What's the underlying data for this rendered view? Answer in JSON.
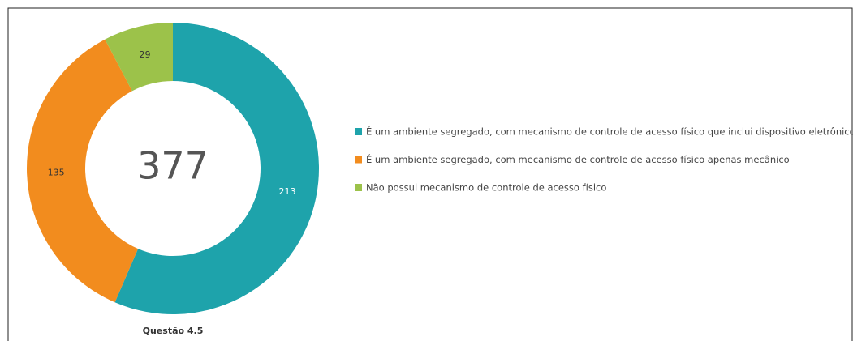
{
  "chart_data": {
    "type": "donut",
    "title": "Questão 4.5",
    "center_label": 377,
    "categories": [
      "É um ambiente segregado, com mecanismo de controle de acesso físico que inclui dispositivo eletrônico",
      "É um ambiente segregado, com mecanismo de controle de acesso físico apenas mecânico",
      "Não possui mecanismo de controle de acesso físico"
    ],
    "values": [
      213,
      135,
      29
    ],
    "colors": [
      "#1ea3ab",
      "#f28c1e",
      "#9cc24a"
    ],
    "label_colors": [
      "#ffffff",
      "#333333",
      "#333333"
    ]
  }
}
